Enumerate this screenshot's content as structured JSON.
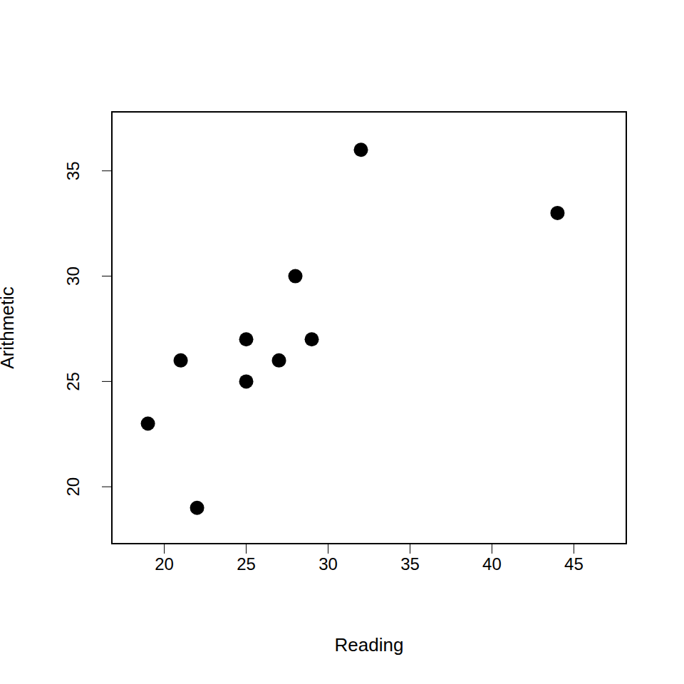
{
  "chart_data": {
    "type": "scatter",
    "x_label": "Reading",
    "y_label": "Arithmetic",
    "x": [
      19,
      21,
      22,
      25,
      25,
      27,
      28,
      29,
      32,
      44
    ],
    "values": [
      23,
      26,
      19,
      27,
      25,
      26,
      30,
      27,
      36,
      33
    ],
    "color": "#000000",
    "marker": "circle",
    "xlim": [
      16.8,
      48.2
    ],
    "ylim": [
      17.3,
      37.8
    ],
    "xticks": [
      20,
      25,
      30,
      35,
      40,
      45
    ],
    "yticks": [
      20,
      25,
      30,
      35
    ],
    "grid": false
  }
}
